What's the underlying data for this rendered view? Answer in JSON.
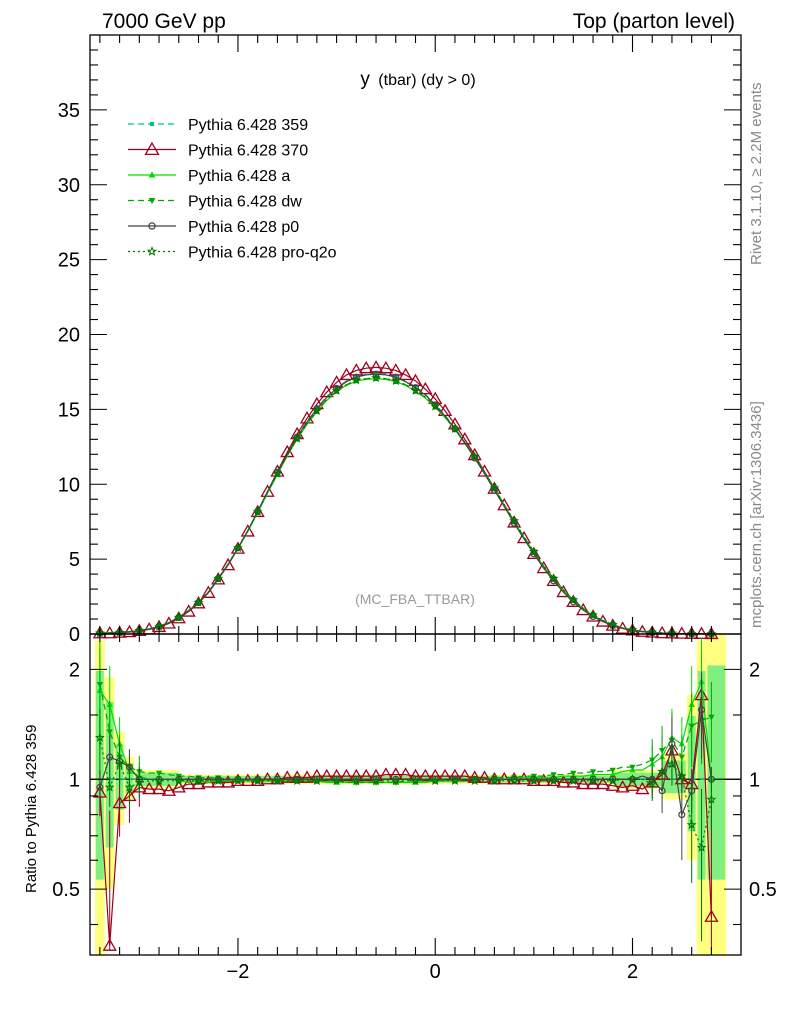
{
  "header": {
    "left_title": "7000 GeV pp",
    "right_title": "Top (parton level)",
    "side_label_rivet": "Rivet 3.1.10, ≥ 2.2M events",
    "side_label_mcplots": "mcplots.cern.ch [arXiv:1306.3436]"
  },
  "chart_data": [
    {
      "type": "line",
      "panel": "main",
      "title_main": "y",
      "title_sub": "(tbar) (dy > 0)",
      "watermark": "(MC_FBA_TTBAR)",
      "xlabel": "",
      "ylabel": "",
      "xlim": [
        -3.5,
        3.1
      ],
      "ylim": [
        0,
        40
      ],
      "y_ticks": [
        0,
        5,
        10,
        15,
        20,
        25,
        30,
        35
      ],
      "y_tick_labels": [
        "0",
        "5",
        "10",
        "15",
        "20",
        "25",
        "30",
        "35"
      ],
      "x_ticks": [
        -2,
        0,
        2
      ],
      "grid": false,
      "legend_position": "top-left",
      "x": [
        -3.4,
        -3.3,
        -3.2,
        -3.1,
        -3.0,
        -2.9,
        -2.8,
        -2.7,
        -2.6,
        -2.5,
        -2.4,
        -2.3,
        -2.2,
        -2.1,
        -2.0,
        -1.9,
        -1.8,
        -1.7,
        -1.6,
        -1.5,
        -1.4,
        -1.3,
        -1.2,
        -1.1,
        -1.0,
        -0.9,
        -0.8,
        -0.7,
        -0.6,
        -0.5,
        -0.4,
        -0.3,
        -0.2,
        -0.1,
        0.0,
        0.1,
        0.2,
        0.3,
        0.4,
        0.5,
        0.6,
        0.7,
        0.8,
        0.9,
        1.0,
        1.1,
        1.2,
        1.3,
        1.4,
        1.5,
        1.6,
        1.7,
        1.8,
        1.9,
        2.0,
        2.1,
        2.2,
        2.3,
        2.4,
        2.5,
        2.6,
        2.7,
        2.8
      ],
      "series": [
        {
          "name": "Pythia 6.428 359",
          "color": "#00c080",
          "line": "dashed",
          "marker": "square",
          "values": [
            0.05,
            0.07,
            0.1,
            0.15,
            0.22,
            0.33,
            0.5,
            0.75,
            1.1,
            1.55,
            2.1,
            2.8,
            3.7,
            4.65,
            5.75,
            6.9,
            8.2,
            9.5,
            10.8,
            12.05,
            13.2,
            14.2,
            15.1,
            15.85,
            16.45,
            16.9,
            17.2,
            17.35,
            17.4,
            17.35,
            17.2,
            16.9,
            16.5,
            16.0,
            15.35,
            14.6,
            13.75,
            12.8,
            11.8,
            10.75,
            9.65,
            8.55,
            7.45,
            6.4,
            5.4,
            4.45,
            3.6,
            2.85,
            2.2,
            1.65,
            1.2,
            0.85,
            0.58,
            0.38,
            0.25,
            0.16,
            0.1,
            0.06,
            0.04,
            0.025,
            0.015,
            0.01,
            0.006
          ]
        },
        {
          "name": "Pythia 6.428 370",
          "color": "#a00020",
          "line": "solid",
          "marker": "open-triangle",
          "values": [
            0.05,
            0.05,
            0.09,
            0.13,
            0.21,
            0.31,
            0.47,
            0.7,
            1.05,
            1.5,
            2.05,
            2.75,
            3.65,
            4.6,
            5.7,
            6.85,
            8.15,
            9.5,
            10.85,
            12.15,
            13.35,
            14.4,
            15.35,
            16.15,
            16.8,
            17.3,
            17.6,
            17.75,
            17.8,
            17.75,
            17.6,
            17.3,
            16.9,
            16.35,
            15.7,
            14.9,
            14.0,
            13.0,
            11.95,
            10.85,
            9.7,
            8.6,
            7.45,
            6.4,
            5.35,
            4.4,
            3.55,
            2.8,
            2.15,
            1.6,
            1.17,
            0.83,
            0.56,
            0.36,
            0.24,
            0.15,
            0.1,
            0.06,
            0.04,
            0.025,
            0.015,
            0.012,
            0.003
          ]
        },
        {
          "name": "Pythia 6.428 a",
          "color": "#00dd00",
          "line": "solid",
          "marker": "filled-triangle",
          "values": [
            0.08,
            0.1,
            0.12,
            0.16,
            0.23,
            0.34,
            0.51,
            0.76,
            1.12,
            1.56,
            2.1,
            2.8,
            3.7,
            4.65,
            5.7,
            6.85,
            8.1,
            9.4,
            10.65,
            11.9,
            13.0,
            14.0,
            14.85,
            15.6,
            16.2,
            16.6,
            16.9,
            17.0,
            17.05,
            17.0,
            16.85,
            16.6,
            16.2,
            15.75,
            15.15,
            14.45,
            13.65,
            12.75,
            11.8,
            10.75,
            9.7,
            8.6,
            7.5,
            6.45,
            5.45,
            4.5,
            3.65,
            2.9,
            2.25,
            1.7,
            1.24,
            0.88,
            0.6,
            0.4,
            0.27,
            0.17,
            0.11,
            0.07,
            0.05,
            0.03,
            0.02,
            0.015,
            0.01
          ]
        },
        {
          "name": "Pythia 6.428 dw",
          "color": "#00aa00",
          "line": "dashed",
          "marker": "filled-triangle-down",
          "values": [
            0.07,
            0.09,
            0.11,
            0.16,
            0.23,
            0.34,
            0.52,
            0.77,
            1.12,
            1.57,
            2.12,
            2.82,
            3.72,
            4.67,
            5.75,
            6.9,
            8.15,
            9.45,
            10.7,
            11.95,
            13.05,
            14.05,
            14.9,
            15.65,
            16.25,
            16.65,
            16.95,
            17.05,
            17.1,
            17.05,
            16.9,
            16.65,
            16.25,
            15.8,
            15.2,
            14.5,
            13.7,
            12.8,
            11.85,
            10.8,
            9.75,
            8.65,
            7.55,
            6.5,
            5.5,
            4.55,
            3.7,
            2.95,
            2.28,
            1.72,
            1.26,
            0.9,
            0.62,
            0.41,
            0.27,
            0.18,
            0.12,
            0.08,
            0.05,
            0.03,
            0.02,
            0.015,
            0.01
          ]
        },
        {
          "name": "Pythia 6.428 p0",
          "color": "#444444",
          "line": "solid",
          "marker": "open-circle",
          "values": [
            0.05,
            0.06,
            0.11,
            0.16,
            0.22,
            0.33,
            0.5,
            0.75,
            1.1,
            1.55,
            2.1,
            2.8,
            3.7,
            4.65,
            5.75,
            6.9,
            8.2,
            9.5,
            10.8,
            12.0,
            13.15,
            14.15,
            15.05,
            15.8,
            16.4,
            16.85,
            17.15,
            17.3,
            17.35,
            17.3,
            17.15,
            16.85,
            16.45,
            15.95,
            15.3,
            14.55,
            13.7,
            12.75,
            11.75,
            10.7,
            9.6,
            8.5,
            7.4,
            6.35,
            5.35,
            4.4,
            3.55,
            2.8,
            2.15,
            1.6,
            1.17,
            0.83,
            0.57,
            0.38,
            0.25,
            0.17,
            0.1,
            0.06,
            0.04,
            0.02,
            0.015,
            0.01,
            0.006
          ]
        },
        {
          "name": "Pythia 6.428 pro-q2o",
          "color": "#007700",
          "line": "dotted",
          "marker": "open-star",
          "values": [
            0.06,
            0.07,
            0.1,
            0.15,
            0.22,
            0.33,
            0.5,
            0.75,
            1.1,
            1.55,
            2.1,
            2.8,
            3.7,
            4.65,
            5.75,
            6.9,
            8.15,
            9.45,
            10.7,
            11.95,
            13.05,
            14.05,
            14.9,
            15.65,
            16.25,
            16.65,
            16.95,
            17.05,
            17.1,
            17.05,
            16.9,
            16.65,
            16.25,
            15.8,
            15.2,
            14.5,
            13.7,
            12.8,
            11.85,
            10.8,
            9.75,
            8.65,
            7.55,
            6.5,
            5.5,
            4.55,
            3.7,
            2.95,
            2.28,
            1.72,
            1.26,
            0.9,
            0.62,
            0.41,
            0.27,
            0.18,
            0.12,
            0.07,
            0.05,
            0.03,
            0.015,
            0.01,
            0.008
          ]
        }
      ]
    },
    {
      "type": "line",
      "panel": "ratio",
      "ylabel": "Ratio to Pythia 6.428 359",
      "xlabel": "",
      "ylim": [
        0.33,
        2.5
      ],
      "y_scale": "log",
      "y_ticks": [
        0.5,
        1,
        2
      ],
      "y_tick_labels": [
        "0.5",
        "1",
        "2"
      ],
      "x_ticks": [
        -2,
        0,
        2
      ],
      "x_tick_labels": [
        "−2",
        "0",
        "2"
      ],
      "reference_line": 1,
      "band_colors": [
        "#ffff80",
        "#80ee80"
      ],
      "x": [
        -3.4,
        -3.3,
        -3.2,
        -3.1,
        -3.0,
        -2.9,
        -2.8,
        -2.7,
        -2.6,
        -2.5,
        -2.4,
        -2.3,
        -2.2,
        -2.1,
        -2.0,
        -1.9,
        -1.8,
        -1.7,
        -1.6,
        -1.5,
        -1.4,
        -1.3,
        -1.2,
        -1.1,
        -1.0,
        -0.9,
        -0.8,
        -0.7,
        -0.6,
        -0.5,
        -0.4,
        -0.3,
        -0.2,
        -0.1,
        0.0,
        0.1,
        0.2,
        0.3,
        0.4,
        0.5,
        0.6,
        0.7,
        0.8,
        0.9,
        1.0,
        1.1,
        1.2,
        1.3,
        1.4,
        1.5,
        1.6,
        1.7,
        1.8,
        1.9,
        2.0,
        2.1,
        2.2,
        2.3,
        2.4,
        2.5,
        2.6,
        2.7,
        2.8
      ],
      "series": [
        {
          "name": "Pythia 6.428 359",
          "values": [
            1.0,
            1.0,
            1.0,
            1.0,
            1.0,
            1.0,
            1.0,
            1.0,
            1.0,
            1.0,
            1.0,
            1.0,
            1.0,
            1.0,
            1.0,
            1.0,
            1.0,
            1.0,
            1.0,
            1.0,
            1.0,
            1.0,
            1.0,
            1.0,
            1.0,
            1.0,
            1.0,
            1.0,
            1.0,
            1.0,
            1.0,
            1.0,
            1.0,
            1.0,
            1.0,
            1.0,
            1.0,
            1.0,
            1.0,
            1.0,
            1.0,
            1.0,
            1.0,
            1.0,
            1.0,
            1.0,
            1.0,
            1.0,
            1.0,
            1.0,
            1.0,
            1.0,
            1.0,
            1.0,
            1.0,
            1.0,
            1.0,
            1.0,
            1.0,
            1.0,
            1.0,
            1.0,
            1.0
          ]
        },
        {
          "name": "Pythia 6.428 370",
          "values": [
            0.92,
            0.35,
            0.86,
            0.9,
            0.95,
            0.94,
            0.94,
            0.93,
            0.95,
            0.97,
            0.97,
            0.98,
            0.98,
            0.98,
            0.99,
            0.99,
            0.99,
            1.0,
            1.0,
            1.01,
            1.01,
            1.01,
            1.02,
            1.02,
            1.02,
            1.02,
            1.02,
            1.02,
            1.02,
            1.03,
            1.03,
            1.03,
            1.02,
            1.02,
            1.02,
            1.02,
            1.02,
            1.02,
            1.01,
            1.01,
            1.0,
            1.0,
            1.0,
            1.0,
            0.99,
            0.99,
            0.99,
            0.98,
            0.98,
            0.97,
            0.97,
            0.97,
            0.96,
            0.95,
            0.96,
            0.94,
            0.98,
            1.03,
            1.2,
            1.0,
            0.97,
            1.7,
            0.42
          ]
        },
        {
          "name": "Pythia 6.428 a",
          "values": [
            1.75,
            1.6,
            1.25,
            1.05,
            1.02,
            1.0,
            1.0,
            1.0,
            1.0,
            0.98,
            0.99,
            0.98,
            0.99,
            0.99,
            0.99,
            0.99,
            0.99,
            0.99,
            0.99,
            0.99,
            0.99,
            0.99,
            0.99,
            0.98,
            0.98,
            0.98,
            0.98,
            0.98,
            0.98,
            0.98,
            0.98,
            0.98,
            0.98,
            0.98,
            0.99,
            0.99,
            0.99,
            1.0,
            1.0,
            1.0,
            1.0,
            1.0,
            1.01,
            1.01,
            1.01,
            1.01,
            1.01,
            1.02,
            1.02,
            1.02,
            1.03,
            1.03,
            1.03,
            1.05,
            1.06,
            1.06,
            1.1,
            1.15,
            1.3,
            1.25,
            1.6,
            1.85,
            1.0
          ]
        },
        {
          "name": "Pythia 6.428 dw",
          "values": [
            1.82,
            1.35,
            1.15,
            1.08,
            1.05,
            1.04,
            1.04,
            1.03,
            1.02,
            1.02,
            1.01,
            1.01,
            1.01,
            1.0,
            1.0,
            1.0,
            0.99,
            0.99,
            0.99,
            0.99,
            0.99,
            0.99,
            0.99,
            0.99,
            0.99,
            0.98,
            0.98,
            0.98,
            0.98,
            0.98,
            0.98,
            0.99,
            0.99,
            0.99,
            0.99,
            0.99,
            1.0,
            1.0,
            1.0,
            1.0,
            1.01,
            1.01,
            1.01,
            1.02,
            1.02,
            1.02,
            1.03,
            1.03,
            1.04,
            1.04,
            1.05,
            1.05,
            1.06,
            1.08,
            1.08,
            1.1,
            1.13,
            1.2,
            1.28,
            1.15,
            1.4,
            1.45,
            1.48
          ]
        },
        {
          "name": "Pythia 6.428 p0",
          "values": [
            0.95,
            1.15,
            1.12,
            1.08,
            1.0,
            1.0,
            1.0,
            1.0,
            1.0,
            1.0,
            1.0,
            1.0,
            1.0,
            1.0,
            1.0,
            1.0,
            1.0,
            1.0,
            1.0,
            1.0,
            1.0,
            1.0,
            1.0,
            1.0,
            1.0,
            1.0,
            1.0,
            1.0,
            1.0,
            1.0,
            1.0,
            1.0,
            1.0,
            1.0,
            1.0,
            1.0,
            1.0,
            1.0,
            1.0,
            1.0,
            1.0,
            1.0,
            1.0,
            1.0,
            1.0,
            1.0,
            1.0,
            1.0,
            1.0,
            1.0,
            1.0,
            1.0,
            1.0,
            1.0,
            1.0,
            1.02,
            1.0,
            0.93,
            1.25,
            0.8,
            0.93,
            1.55,
            1.0
          ]
        },
        {
          "name": "Pythia 6.428 pro-q2o",
          "values": [
            1.3,
            0.95,
            1.1,
            0.95,
            0.98,
            0.99,
            0.99,
            0.99,
            0.99,
            0.99,
            0.99,
            0.99,
            0.99,
            0.99,
            0.99,
            0.99,
            0.99,
            0.99,
            0.99,
            0.99,
            0.99,
            0.99,
            0.99,
            0.99,
            0.99,
            0.99,
            0.99,
            0.99,
            0.99,
            0.99,
            0.99,
            0.99,
            0.99,
            0.99,
            0.99,
            0.99,
            0.99,
            0.99,
            0.99,
            0.99,
            0.99,
            0.99,
            0.99,
            0.99,
            0.99,
            0.99,
            0.99,
            0.99,
            0.99,
            0.99,
            0.99,
            0.99,
            0.99,
            1.0,
            1.0,
            1.0,
            0.97,
            1.05,
            1.1,
            1.02,
            0.75,
            0.65,
            0.88
          ]
        }
      ]
    }
  ]
}
